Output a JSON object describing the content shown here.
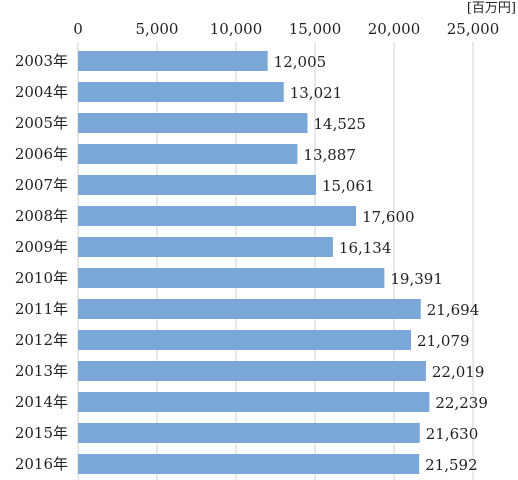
{
  "chart_data": {
    "type": "bar",
    "orientation": "horizontal",
    "unit_label": "[百万円]",
    "categories": [
      "2003年",
      "2004年",
      "2005年",
      "2006年",
      "2007年",
      "2008年",
      "2009年",
      "2010年",
      "2011年",
      "2012年",
      "2013年",
      "2014年",
      "2015年",
      "2016年"
    ],
    "values": [
      12005,
      13021,
      14525,
      13887,
      15061,
      17600,
      16134,
      19391,
      21694,
      21079,
      22019,
      22239,
      21630,
      21592
    ],
    "value_labels": [
      "12,005",
      "13,021",
      "14,525",
      "13,887",
      "15,061",
      "17,600",
      "16,134",
      "19,391",
      "21,694",
      "21,079",
      "22,019",
      "22,239",
      "21,630",
      "21,592"
    ],
    "xticks": [
      0,
      5000,
      10000,
      15000,
      20000,
      25000
    ],
    "xtick_labels": [
      "0",
      "5,000",
      "10,000",
      "15,000",
      "20,000",
      "25,000"
    ],
    "xlim": [
      0,
      25000
    ],
    "axis_position": "top",
    "grid": true,
    "bar_color": "#7ba7d8"
  }
}
